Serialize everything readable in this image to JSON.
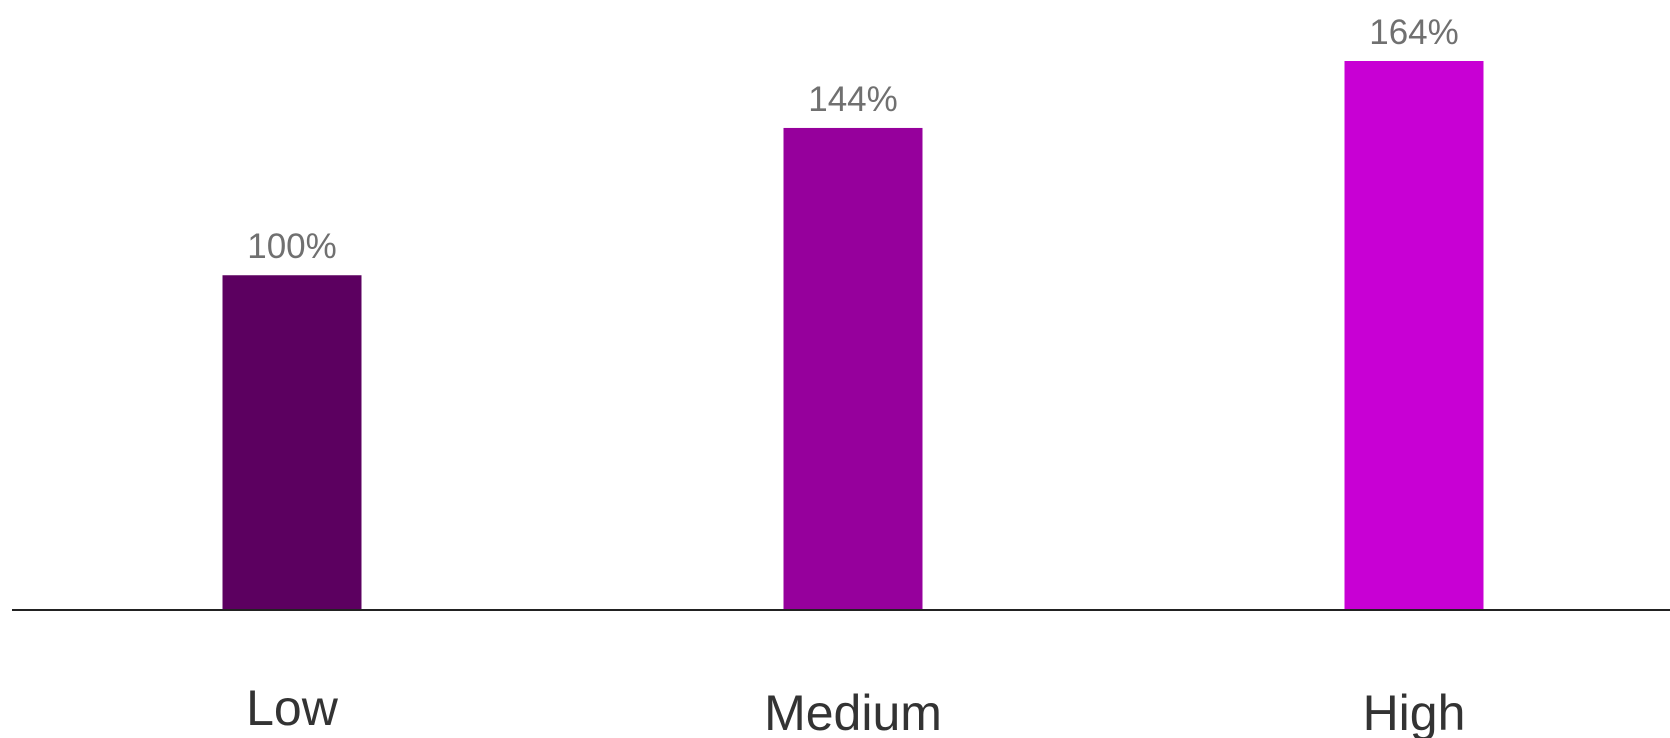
{
  "chart_data": {
    "type": "bar",
    "categories": [
      "Low",
      "Medium",
      "High"
    ],
    "values": [
      100,
      144,
      164
    ],
    "data_labels": [
      "100%",
      "144%",
      "164%"
    ],
    "colors": [
      "#5c0060",
      "#96009c",
      "#c800d4"
    ],
    "axis_color": "#222222",
    "ylim": [
      0,
      164
    ],
    "grid": false,
    "legend": "none",
    "title": "",
    "xlabel": "",
    "ylabel": ""
  }
}
